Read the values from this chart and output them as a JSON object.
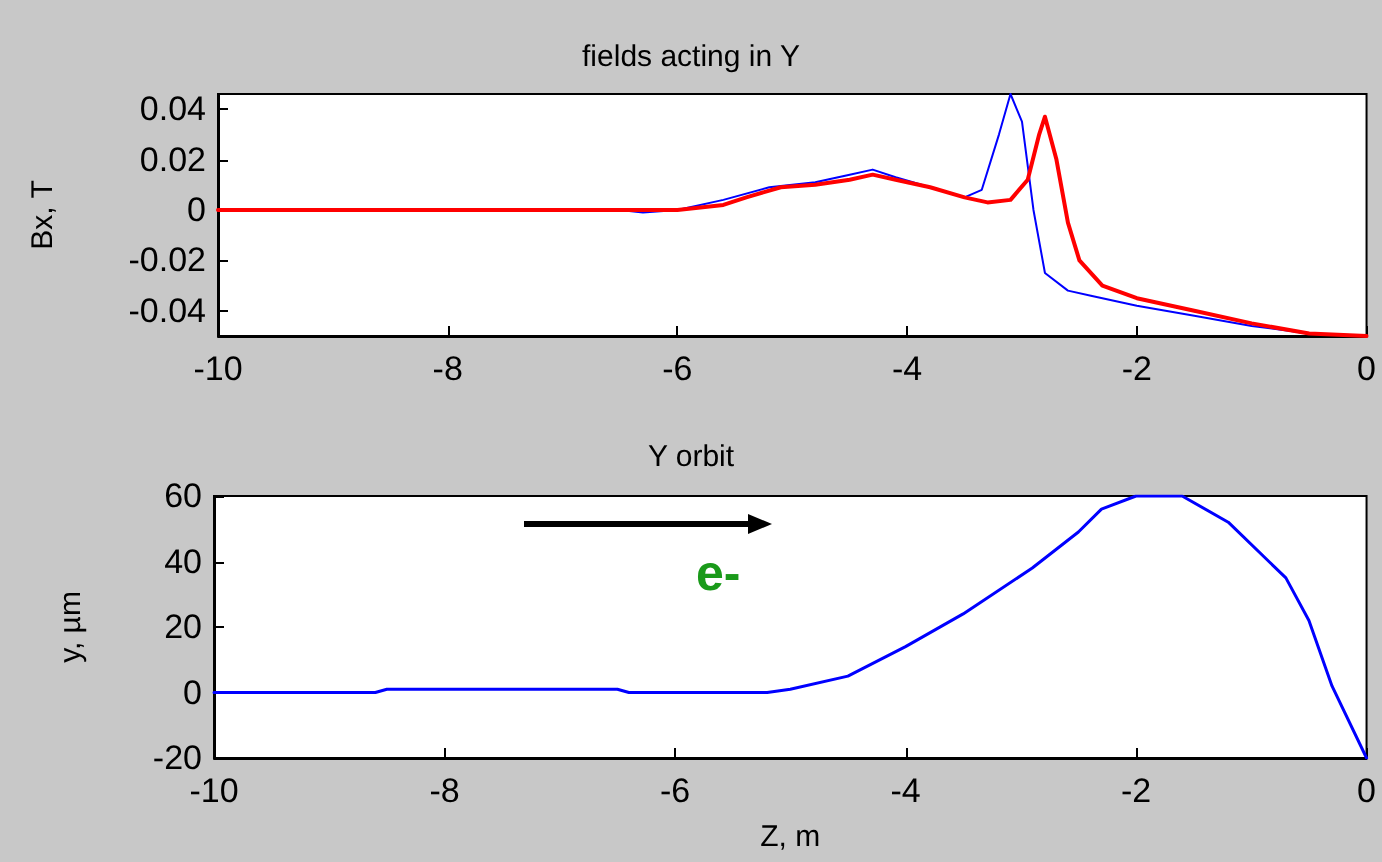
{
  "chart_data": [
    {
      "type": "line",
      "title": "fields acting in Y",
      "ylabel": "Bx, T",
      "xlim": [
        -10,
        0
      ],
      "xticks": [
        -10,
        -8,
        -6,
        -4,
        -2,
        0
      ],
      "ylim": [
        -0.05,
        0.046
      ],
      "yticks": [
        -0.04,
        -0.02,
        0,
        0.02,
        0.04
      ],
      "grid": false,
      "marker": "none",
      "line_style": "solid",
      "series": [
        {
          "color": "#0000ff",
          "x": [
            -10,
            -6.5,
            -6.3,
            -6,
            -5.6,
            -5.2,
            -4.8,
            -4.5,
            -4.3,
            -4.1,
            -3.8,
            -3.5,
            -3.35,
            -3.2,
            -3.1,
            -3.0,
            -2.9,
            -2.8,
            -2.6,
            -2.4,
            -2,
            -1.5,
            -1,
            -0.5,
            0
          ],
          "values": [
            0,
            0,
            -0.001,
            0,
            0.004,
            0.009,
            0.011,
            0.014,
            0.016,
            0.013,
            0.009,
            0.005,
            0.008,
            0.03,
            0.046,
            0.035,
            0,
            -0.025,
            -0.032,
            -0.034,
            -0.038,
            -0.042,
            -0.046,
            -0.049,
            -0.05
          ]
        },
        {
          "color": "#ff0000",
          "x": [
            -10,
            -6,
            -5.6,
            -5.4,
            -5.1,
            -4.8,
            -4.5,
            -4.3,
            -4.1,
            -3.8,
            -3.5,
            -3.3,
            -3.1,
            -2.95,
            -2.85,
            -2.8,
            -2.7,
            -2.6,
            -2.5,
            -2.3,
            -2,
            -1.5,
            -1,
            -0.5,
            0
          ],
          "values": [
            0,
            0,
            0.002,
            0.005,
            0.009,
            0.01,
            0.012,
            0.014,
            0.012,
            0.009,
            0.005,
            0.003,
            0.004,
            0.012,
            0.03,
            0.037,
            0.02,
            -0.005,
            -0.02,
            -0.03,
            -0.035,
            -0.04,
            -0.045,
            -0.049,
            -0.05
          ]
        }
      ]
    },
    {
      "type": "line",
      "title": "Y orbit",
      "xlabel": "Z, m",
      "ylabel": "y, µm",
      "xlim": [
        -10,
        0
      ],
      "xticks": [
        -10,
        -8,
        -6,
        -4,
        -2,
        0
      ],
      "ylim": [
        -20,
        60
      ],
      "yticks": [
        -20,
        0,
        20,
        40,
        60
      ],
      "grid": false,
      "marker": "none",
      "line_style": "solid",
      "annotations": [
        "e-"
      ],
      "series": [
        {
          "color": "#0000ff",
          "x": [
            -10,
            -8.6,
            -8.5,
            -6.5,
            -6.4,
            -5.2,
            -5,
            -4.5,
            -4,
            -3.5,
            -2.9,
            -2.5,
            -2.3,
            -2,
            -1.8,
            -1.6,
            -1.2,
            -0.7,
            -0.5,
            -0.3,
            0
          ],
          "values": [
            0,
            0,
            1,
            1,
            0,
            0,
            1,
            5,
            14,
            24,
            38,
            49,
            56,
            60,
            60,
            60,
            52,
            35,
            22,
            2,
            -20
          ]
        }
      ]
    }
  ]
}
